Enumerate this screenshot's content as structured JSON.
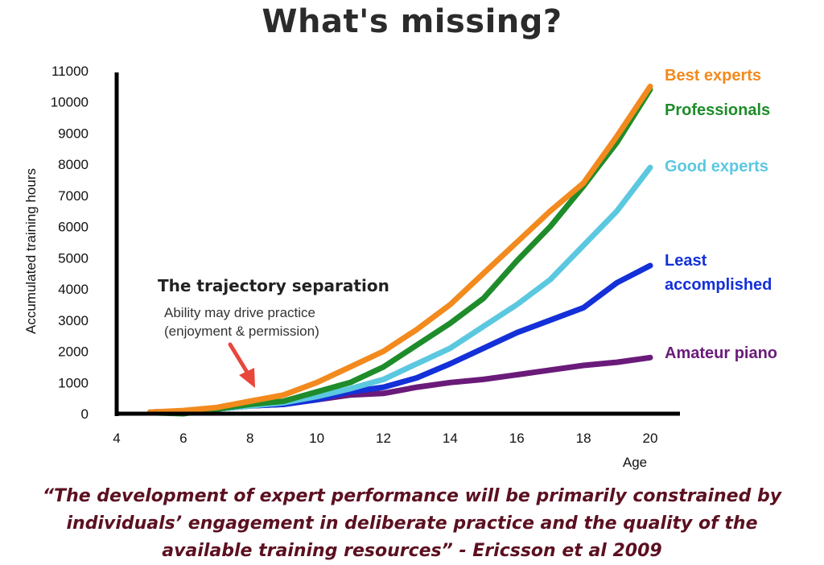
{
  "title": "What's missing?",
  "chart_data": {
    "type": "line",
    "xlabel": "Age",
    "ylabel": "Accumulated training hours",
    "xlim": [
      4,
      20
    ],
    "ylim": [
      0,
      11000
    ],
    "xticks": [
      4,
      6,
      8,
      10,
      12,
      14,
      16,
      18,
      20
    ],
    "yticks": [
      0,
      1000,
      2000,
      3000,
      4000,
      5000,
      6000,
      7000,
      8000,
      9000,
      10000,
      11000
    ],
    "grid": false,
    "legend": "right (labels at line ends)",
    "series": [
      {
        "name": "Amateur piano",
        "color": "#6a1b7a",
        "x": [
          5,
          6,
          7,
          8,
          9,
          10,
          11,
          12,
          13,
          14,
          15,
          16,
          17,
          18,
          19,
          20
        ],
        "y": [
          50,
          80,
          150,
          250,
          300,
          450,
          600,
          650,
          850,
          1000,
          1100,
          1250,
          1400,
          1550,
          1650,
          1800
        ]
      },
      {
        "name": "Least\naccomplished",
        "color": "#1430d8",
        "x": [
          5,
          6,
          7,
          8,
          9,
          10,
          11,
          12,
          13,
          14,
          15,
          16,
          17,
          18,
          19,
          20
        ],
        "y": [
          50,
          80,
          150,
          250,
          300,
          450,
          700,
          850,
          1150,
          1600,
          2100,
          2600,
          3000,
          3400,
          4200,
          4750
        ]
      },
      {
        "name": "Good experts",
        "color": "#5bc8e0",
        "x": [
          5,
          6,
          7,
          8,
          9,
          10,
          11,
          12,
          13,
          14,
          15,
          16,
          17,
          18,
          19,
          20
        ],
        "y": [
          50,
          80,
          150,
          250,
          350,
          550,
          800,
          1100,
          1600,
          2100,
          2800,
          3500,
          4300,
          5400,
          6500,
          7900
        ]
      },
      {
        "name": "Professionals",
        "color": "#1e8c2a",
        "x": [
          5,
          6,
          7,
          8,
          9,
          10,
          11,
          12,
          13,
          14,
          15,
          16,
          17,
          18,
          19,
          20
        ],
        "y": [
          30,
          0,
          150,
          300,
          400,
          700,
          1000,
          1500,
          2200,
          2900,
          3700,
          4900,
          6000,
          7300,
          8700,
          10400
        ]
      },
      {
        "name": "Best experts",
        "color": "#f28a1e",
        "x": [
          5,
          6,
          7,
          8,
          9,
          10,
          11,
          12,
          13,
          14,
          15,
          16,
          17,
          18,
          19,
          20
        ],
        "y": [
          50,
          100,
          200,
          400,
          600,
          1000,
          1500,
          2000,
          2700,
          3500,
          4500,
          5500,
          6500,
          7400,
          8900,
          10500
        ]
      }
    ],
    "annotation": {
      "title": "The trajectory separation",
      "lines": [
        "Ability may drive practice",
        "(enjoyment & permission)"
      ],
      "arrow_color": "#e8473c"
    }
  },
  "quote_lines": [
    "“The development of expert performance will be primarily constrained by",
    "individuals’ engagement in deliberate practice and the quality of the",
    "available training resources” - Ericsson et al 2009"
  ]
}
